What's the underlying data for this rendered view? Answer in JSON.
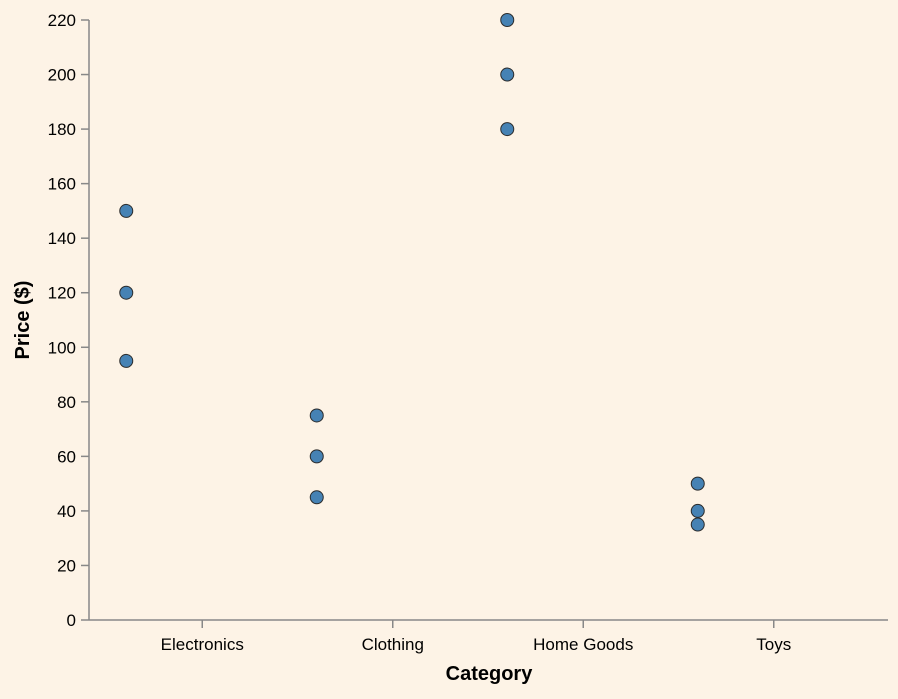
{
  "chart_data": {
    "type": "scatter",
    "xlabel": "Category",
    "ylabel": "Price ($)",
    "categories": [
      "Electronics",
      "Clothing",
      "Home Goods",
      "Toys"
    ],
    "ylim": [
      0,
      220
    ],
    "yticks": [
      0,
      20,
      40,
      60,
      80,
      100,
      120,
      140,
      160,
      180,
      200,
      220
    ],
    "grid": false,
    "colors": {
      "background": "#fdf3e6",
      "point_fill": "#4682b4",
      "point_stroke": "#2b2b2b",
      "axis": "#888888"
    },
    "points": [
      {
        "x": "Electronics",
        "y": 150
      },
      {
        "x": "Electronics",
        "y": 120
      },
      {
        "x": "Electronics",
        "y": 95
      },
      {
        "x": "Clothing",
        "y": 75
      },
      {
        "x": "Clothing",
        "y": 60
      },
      {
        "x": "Clothing",
        "y": 45
      },
      {
        "x": "Home Goods",
        "y": 220
      },
      {
        "x": "Home Goods",
        "y": 200
      },
      {
        "x": "Home Goods",
        "y": 180
      },
      {
        "x": "Toys",
        "y": 50
      },
      {
        "x": "Toys",
        "y": 40
      },
      {
        "x": "Toys",
        "y": 35
      }
    ]
  }
}
